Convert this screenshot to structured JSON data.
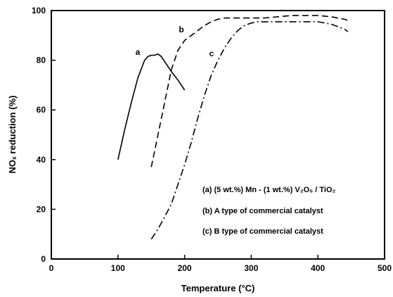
{
  "chart_data": {
    "type": "line",
    "xlabel": "Temperature (°C)",
    "ylabel": "NOₓ reduction (%)",
    "xlim": [
      0,
      500
    ],
    "ylim": [
      0,
      100
    ],
    "xticks": [
      0,
      100,
      200,
      300,
      400,
      500
    ],
    "yticks": [
      0,
      20,
      40,
      60,
      80,
      100
    ],
    "grid": false,
    "legend_position": "lower-right",
    "series": [
      {
        "name": "(a) (5 wt.%) Mn - (1 wt.%) V₂O₅ / TiO₂",
        "label": "a",
        "dash": "solid",
        "x": [
          100,
          110,
          120,
          130,
          140,
          145,
          150,
          155,
          160,
          165,
          170,
          180,
          190,
          200
        ],
        "y": [
          40,
          52,
          63,
          73,
          80,
          81.5,
          82,
          82,
          82.5,
          81.5,
          79.5,
          75.5,
          72,
          68
        ]
      },
      {
        "name": "(b) A type of commercial catalyst",
        "label": "b",
        "dash": "dashed",
        "x": [
          150,
          160,
          170,
          180,
          190,
          200,
          210,
          220,
          230,
          240,
          250,
          260,
          280,
          300,
          320,
          340,
          360,
          380,
          400,
          420,
          440,
          445
        ],
        "y": [
          37,
          50,
          63,
          76,
          84,
          88,
          90,
          92,
          94,
          95.5,
          96.5,
          97,
          97,
          97,
          97,
          97.5,
          98,
          98,
          98,
          97.5,
          96.5,
          96
        ]
      },
      {
        "name": "(c) B type of commercial catalyst",
        "label": "c",
        "dash": "dashdot",
        "x": [
          150,
          160,
          170,
          180,
          190,
          200,
          210,
          220,
          230,
          240,
          250,
          260,
          270,
          280,
          290,
          300,
          310,
          320,
          340,
          360,
          380,
          400,
          420,
          440,
          445
        ],
        "y": [
          8,
          12,
          17,
          22,
          30,
          38,
          47,
          57,
          66,
          74,
          80,
          85,
          89,
          92,
          94,
          95,
          95.5,
          95.5,
          95.5,
          95.5,
          95.5,
          95.5,
          94.5,
          92.5,
          91.5
        ]
      }
    ],
    "annotations": [
      "a",
      "b",
      "c"
    ]
  }
}
